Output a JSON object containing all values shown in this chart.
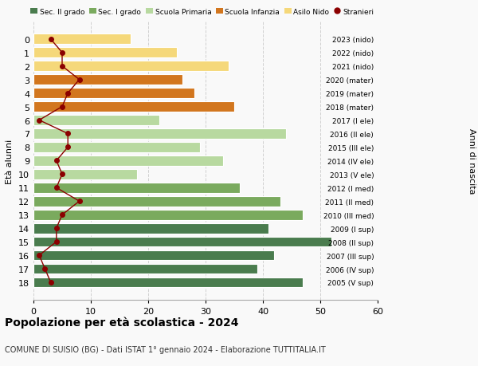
{
  "ages": [
    0,
    1,
    2,
    3,
    4,
    5,
    6,
    7,
    8,
    9,
    10,
    11,
    12,
    13,
    14,
    15,
    16,
    17,
    18
  ],
  "years": [
    "2023 (nido)",
    "2022 (nido)",
    "2021 (nido)",
    "2020 (mater)",
    "2019 (mater)",
    "2018 (mater)",
    "2017 (I ele)",
    "2016 (II ele)",
    "2015 (III ele)",
    "2014 (IV ele)",
    "2013 (V ele)",
    "2012 (I med)",
    "2011 (II med)",
    "2010 (III med)",
    "2009 (I sup)",
    "2008 (II sup)",
    "2007 (III sup)",
    "2006 (IV sup)",
    "2005 (V sup)"
  ],
  "bar_values": [
    17,
    25,
    34,
    26,
    28,
    35,
    22,
    44,
    29,
    33,
    18,
    36,
    43,
    47,
    41,
    52,
    42,
    39,
    47
  ],
  "stranieri": [
    3,
    5,
    5,
    8,
    6,
    5,
    1,
    6,
    6,
    4,
    5,
    4,
    8,
    5,
    4,
    4,
    1,
    2,
    3
  ],
  "bar_colors": [
    "#f5d87a",
    "#f5d87a",
    "#f5d87a",
    "#d2761e",
    "#d2761e",
    "#d2761e",
    "#b8d9a0",
    "#b8d9a0",
    "#b8d9a0",
    "#b8d9a0",
    "#b8d9a0",
    "#7aaa5e",
    "#7aaa5e",
    "#7aaa5e",
    "#4a7c4e",
    "#4a7c4e",
    "#4a7c4e",
    "#4a7c4e",
    "#4a7c4e"
  ],
  "legend_labels": [
    "Sec. II grado",
    "Sec. I grado",
    "Scuola Primaria",
    "Scuola Infanzia",
    "Asilo Nido",
    "Stranieri"
  ],
  "legend_colors": [
    "#4a7c4e",
    "#7aaa5e",
    "#b8d9a0",
    "#d2761e",
    "#f5d87a",
    "#8b0000"
  ],
  "ylabel": "Età alunni",
  "ylabel_right": "Anni di nascita",
  "title": "Popolazione per età scolastica - 2024",
  "subtitle": "COMUNE DI SUISIO (BG) - Dati ISTAT 1° gennaio 2024 - Elaborazione TUTTITALIA.IT",
  "xlim": [
    0,
    60
  ],
  "background_color": "#f9f9f9",
  "grid_color": "#cccccc",
  "stranieri_color": "#8b0000"
}
